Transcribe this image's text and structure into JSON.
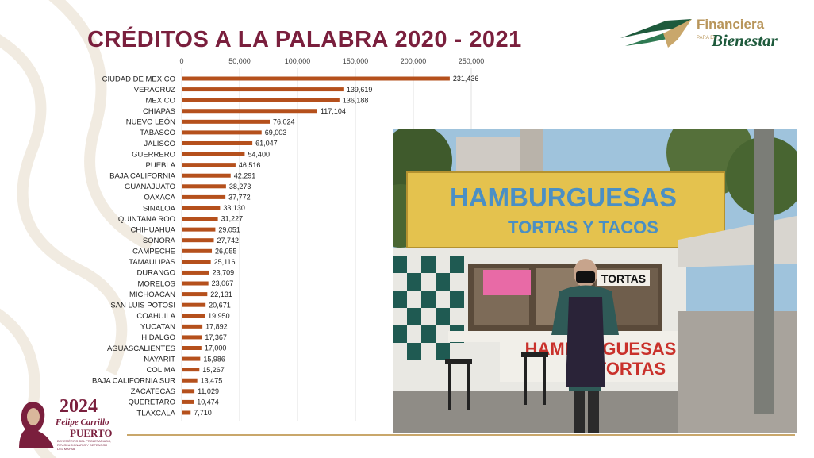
{
  "title": "CRÉDITOS A LA PALABRA 2020 - 2021",
  "brand": {
    "line1": "Financiera",
    "small": "PARA EL",
    "line2": "Bienestar",
    "green": "#1e5a3c",
    "gold": "#b8955a",
    "icon": "eagle-wing-icon"
  },
  "logo_2024": {
    "year": "2024",
    "name": "Felipe Carrillo",
    "name2": "PUERTO",
    "caption": "BENEMÉRITO DEL PROLETARIADO, REVOLUCIONARIO Y DEFENSOR DEL MAYAB",
    "color": "#7a1f3d"
  },
  "photo": {
    "sign_main": "HAMBURGUESAS",
    "sign_sub": "TORTAS Y TACOS",
    "window_sign": "TORTAS",
    "counter_sign_1": "HAMBURGUESAS",
    "counter_sign_2": "TORTAS",
    "description_icon": "storefront-photo"
  },
  "chart_data": {
    "type": "bar",
    "orientation": "horizontal",
    "bar_color": "#b5501c",
    "xlim": [
      0,
      250000
    ],
    "xticks": [
      "0",
      "50,000",
      "100,000",
      "150,000",
      "200,000",
      "250,000"
    ],
    "grid": true,
    "categories": [
      "CIUDAD DE MEXICO",
      "VERACRUZ",
      "MEXICO",
      "CHIAPAS",
      "NUEVO LEÓN",
      "TABASCO",
      "JALISCO",
      "GUERRERO",
      "PUEBLA",
      "BAJA CALIFORNIA",
      "GUANAJUATO",
      "OAXACA",
      "SINALOA",
      "QUINTANA ROO",
      "CHIHUAHUA",
      "SONORA",
      "CAMPECHE",
      "TAMAULIPAS",
      "DURANGO",
      "MORELOS",
      "MICHOACAN",
      "SAN LUIS POTOSI",
      "COAHUILA",
      "YUCATAN",
      "HIDALGO",
      "AGUASCALIENTES",
      "NAYARIT",
      "COLIMA",
      "BAJA CALIFORNIA SUR",
      "ZACATECAS",
      "QUERETARO",
      "TLAXCALA"
    ],
    "values": [
      231436,
      139619,
      136188,
      117104,
      76024,
      69003,
      61047,
      54400,
      46516,
      42291,
      38273,
      37772,
      33130,
      31227,
      29051,
      27742,
      26055,
      25116,
      23709,
      23067,
      22131,
      20671,
      19950,
      17892,
      17367,
      17000,
      15986,
      15267,
      13475,
      11029,
      10474,
      7710
    ],
    "value_labels": [
      "231,436",
      "139,619",
      "136,188",
      "117,104",
      "76,024",
      "69,003",
      "61,047",
      "54,400",
      "46,516",
      "42,291",
      "38,273",
      "37,772",
      "33,130",
      "31,227",
      "29,051",
      "27,742",
      "26,055",
      "25,116",
      "23,709",
      "23,067",
      "22,131",
      "20,671",
      "19,950",
      "17,892",
      "17,367",
      "17,000",
      "15,986",
      "15,267",
      "13,475",
      "11,029",
      "10,474",
      "7,710"
    ]
  }
}
